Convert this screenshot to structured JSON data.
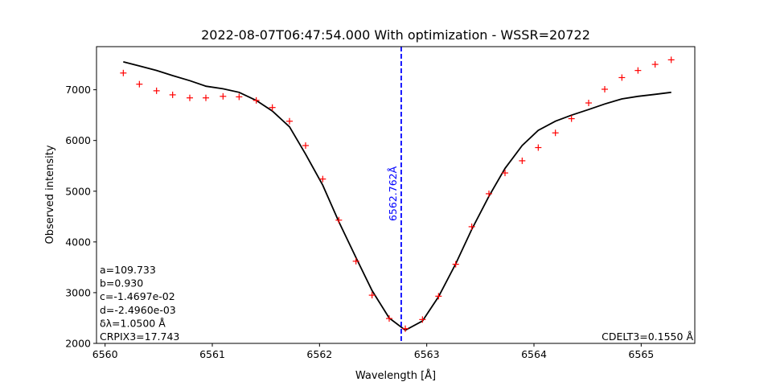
{
  "chart_data": {
    "type": "line",
    "title": "2022-08-07T06:47:54.000 With optimization - WSSR=20722",
    "xlabel": "Wavelength [Å]",
    "ylabel": "Observed intensity",
    "xlim": [
      6559.92,
      6565.5
    ],
    "ylim": [
      2000,
      7850
    ],
    "x_ticks": [
      6560,
      6561,
      6562,
      6563,
      6564,
      6565
    ],
    "y_ticks": [
      2000,
      3000,
      4000,
      5000,
      6000,
      7000
    ],
    "grid": false,
    "series": [
      {
        "type": "scatter",
        "marker": "+",
        "color": "#ff0000",
        "x": [
          6560.17,
          6560.32,
          6560.48,
          6560.63,
          6560.79,
          6560.94,
          6561.1,
          6561.25,
          6561.41,
          6561.56,
          6561.72,
          6561.87,
          6562.03,
          6562.18,
          6562.34,
          6562.49,
          6562.65,
          6562.8,
          6562.96,
          6563.11,
          6563.27,
          6563.42,
          6563.58,
          6563.73,
          6563.89,
          6564.04,
          6564.2,
          6564.35,
          6564.51,
          6564.66,
          6564.82,
          6564.97,
          6565.13,
          6565.28
        ],
        "y": [
          7330,
          7110,
          6980,
          6900,
          6840,
          6840,
          6870,
          6860,
          6790,
          6650,
          6380,
          5900,
          5240,
          4430,
          3620,
          2950,
          2490,
          2290,
          2470,
          2930,
          3560,
          4300,
          4950,
          5360,
          5600,
          5860,
          6150,
          6430,
          6740,
          7010,
          7240,
          7380,
          7500,
          7590
        ]
      },
      {
        "type": "line",
        "color": "#000000",
        "x": [
          6560.17,
          6560.32,
          6560.48,
          6560.63,
          6560.79,
          6560.94,
          6561.1,
          6561.25,
          6561.41,
          6561.56,
          6561.72,
          6561.87,
          6562.03,
          6562.18,
          6562.34,
          6562.49,
          6562.65,
          6562.8,
          6562.96,
          6563.11,
          6563.27,
          6563.42,
          6563.58,
          6563.73,
          6563.89,
          6564.04,
          6564.2,
          6564.35,
          6564.51,
          6564.66,
          6564.82,
          6564.97,
          6565.13,
          6565.28
        ],
        "y": [
          7550,
          7470,
          7380,
          7280,
          7180,
          7070,
          7020,
          6950,
          6790,
          6580,
          6270,
          5730,
          5120,
          4400,
          3690,
          3040,
          2500,
          2260,
          2440,
          2920,
          3570,
          4250,
          4900,
          5450,
          5900,
          6200,
          6380,
          6500,
          6610,
          6720,
          6820,
          6870,
          6910,
          6950
        ]
      }
    ],
    "vline": {
      "x": 6562.762,
      "color": "#0000ff",
      "style": "dashed",
      "label": "6562.762Å"
    },
    "annotations_left": [
      "a=109.733",
      "b=0.930",
      "c=-1.4697e-02",
      "d=-2.4960e-03",
      "δλ=1.0500 Å",
      "CRPIX3=17.743"
    ],
    "annotation_right": "CDELT3=0.1550 Å"
  }
}
